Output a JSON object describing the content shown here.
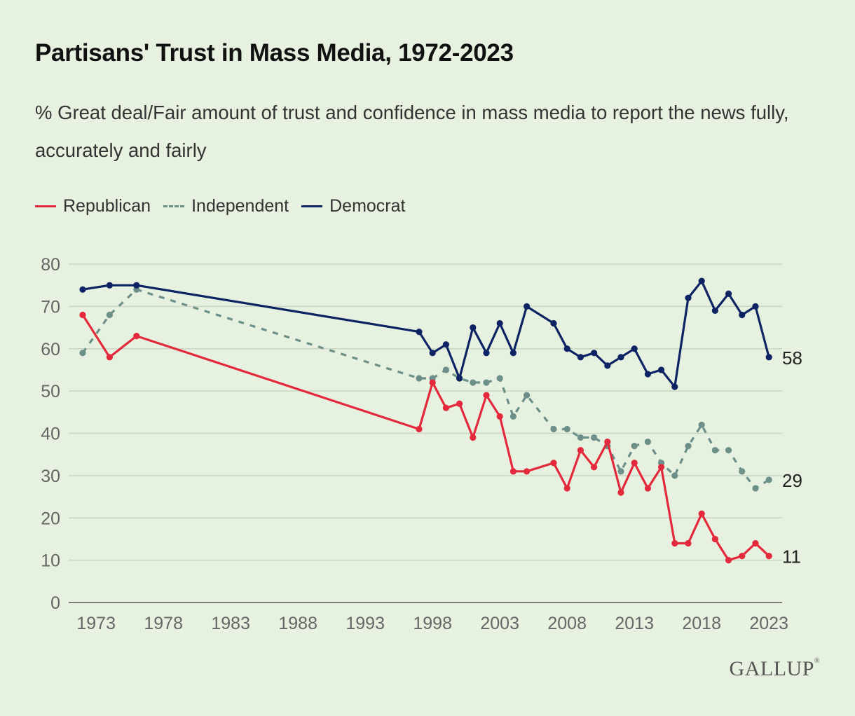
{
  "chart_data": {
    "type": "line",
    "title": "Partisans' Trust in Mass Media, 1972-2023",
    "subtitle": "% Great deal/Fair amount of trust and confidence in mass media to report the news fully, accurately and fairly",
    "ylim": [
      0,
      80
    ],
    "yticks": [
      "0",
      "10",
      "20",
      "30",
      "40",
      "50",
      "60",
      "70",
      "80"
    ],
    "xticks": [
      "1973",
      "1978",
      "1983",
      "1988",
      "1993",
      "1998",
      "2003",
      "2008",
      "2013",
      "2018",
      "2023"
    ],
    "grid": true,
    "legend_position": "top-left",
    "series": [
      {
        "name": "Republican",
        "color": "#e3293b",
        "style": "solid",
        "end_label": "11",
        "x": [
          1972,
          1974,
          1976,
          1997,
          1998,
          1999,
          2000,
          2001,
          2002,
          2003,
          2004,
          2005,
          2007,
          2008,
          2009,
          2010,
          2011,
          2012,
          2013,
          2014,
          2015,
          2016,
          2017,
          2018,
          2019,
          2020,
          2021,
          2022,
          2023
        ],
        "values": [
          68,
          58,
          63,
          41,
          52,
          46,
          47,
          39,
          49,
          44,
          31,
          31,
          33,
          27,
          36,
          32,
          38,
          26,
          33,
          27,
          32,
          14,
          14,
          21,
          15,
          10,
          11,
          14,
          11
        ]
      },
      {
        "name": "Independent",
        "color": "#6d8f89",
        "style": "dashed",
        "end_label": "29",
        "x": [
          1972,
          1974,
          1976,
          1997,
          1998,
          1999,
          2000,
          2001,
          2002,
          2003,
          2004,
          2005,
          2007,
          2008,
          2009,
          2010,
          2011,
          2012,
          2013,
          2014,
          2015,
          2016,
          2017,
          2018,
          2019,
          2020,
          2021,
          2022,
          2023
        ],
        "values": [
          59,
          68,
          74,
          53,
          53,
          55,
          53,
          52,
          52,
          53,
          44,
          49,
          41,
          41,
          39,
          39,
          37,
          31,
          37,
          38,
          33,
          30,
          37,
          42,
          36,
          36,
          31,
          27,
          29
        ]
      },
      {
        "name": "Democrat",
        "color": "#0d2364",
        "style": "solid",
        "end_label": "58",
        "x": [
          1972,
          1974,
          1976,
          1997,
          1998,
          1999,
          2000,
          2001,
          2002,
          2003,
          2004,
          2005,
          2007,
          2008,
          2009,
          2010,
          2011,
          2012,
          2013,
          2014,
          2015,
          2016,
          2017,
          2018,
          2019,
          2020,
          2021,
          2022,
          2023
        ],
        "values": [
          74,
          75,
          75,
          64,
          59,
          61,
          53,
          65,
          59,
          66,
          59,
          70,
          66,
          60,
          58,
          59,
          56,
          58,
          60,
          54,
          55,
          51,
          72,
          76,
          69,
          73,
          68,
          70,
          58
        ]
      }
    ]
  },
  "legend": {
    "republican": "Republican",
    "independent": "Independent",
    "democrat": "Democrat"
  },
  "brand": {
    "logo_text": "GALLUP",
    "registered_mark": "®"
  }
}
